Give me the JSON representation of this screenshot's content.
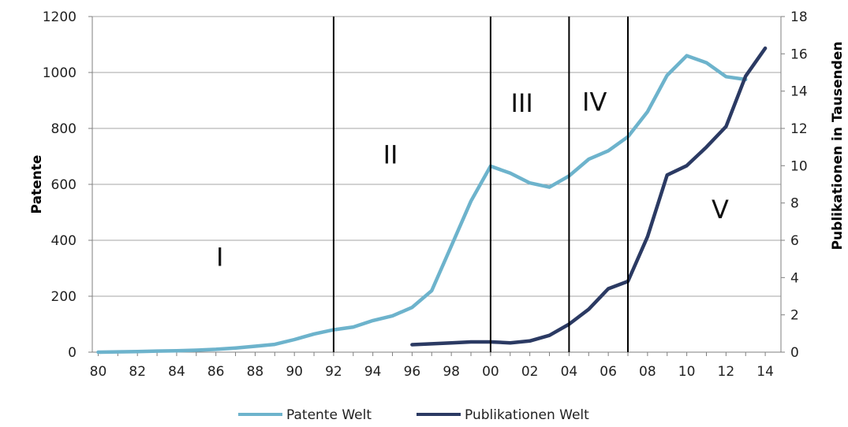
{
  "chart_data": {
    "type": "line",
    "xlabel": "",
    "ylabel": "Patente",
    "y2label": "Publikationen in Tausenden",
    "ylim": [
      0,
      1200
    ],
    "y2lim": [
      0,
      18
    ],
    "grid": true,
    "legend_position": "bottom",
    "x_tick_labels": [
      "80",
      "82",
      "84",
      "86",
      "88",
      "90",
      "92",
      "94",
      "96",
      "98",
      "00",
      "02",
      "04",
      "06",
      "08",
      "10",
      "12",
      "14"
    ],
    "y_tick_labels": [
      "0",
      "200",
      "400",
      "600",
      "800",
      "1000",
      "1200"
    ],
    "y2_tick_labels": [
      "0",
      "2",
      "4",
      "6",
      "8",
      "10",
      "12",
      "14",
      "16",
      "18"
    ],
    "series": [
      {
        "name": "Patente Welt",
        "axis": "left",
        "color": "#6db3cc",
        "x": [
          1980,
          1981,
          1982,
          1983,
          1984,
          1985,
          1986,
          1987,
          1988,
          1989,
          1990,
          1991,
          1992,
          1993,
          1994,
          1995,
          1996,
          1997,
          1998,
          1999,
          2000,
          2001,
          2002,
          2003,
          2004,
          2005,
          2006,
          2007,
          2008,
          2009,
          2010,
          2011,
          2012,
          2013
        ],
        "values": [
          0,
          1,
          2,
          4,
          5,
          7,
          10,
          15,
          21,
          28,
          45,
          65,
          80,
          90,
          113,
          130,
          160,
          220,
          380,
          540,
          665,
          640,
          605,
          590,
          630,
          690,
          720,
          770,
          860,
          990,
          1060,
          1035,
          985,
          975
        ]
      },
      {
        "name": "Publikationen Welt",
        "axis": "right",
        "color": "#2b3a63",
        "x": [
          1996,
          1997,
          1998,
          1999,
          2000,
          2001,
          2002,
          2003,
          2004,
          2005,
          2006,
          2007,
          2008,
          2009,
          2010,
          2011,
          2012,
          2013,
          2014
        ],
        "values": [
          0.4,
          0.45,
          0.5,
          0.55,
          0.55,
          0.5,
          0.6,
          0.9,
          1.5,
          2.3,
          3.4,
          3.8,
          6.2,
          9.5,
          10.0,
          11.0,
          12.1,
          14.8,
          16.3
        ]
      }
    ],
    "phase_lines": [
      1992,
      2000,
      2004,
      2007
    ],
    "phase_labels": [
      {
        "text": "I",
        "x": 1986.2,
        "y": 340
      },
      {
        "text": "II",
        "x": 1994.9,
        "y": 705
      },
      {
        "text": "III",
        "x": 2001.6,
        "y": 890
      },
      {
        "text": "IV",
        "x": 2005.3,
        "y": 895
      },
      {
        "text": "V",
        "x": 2011.7,
        "y": 510
      }
    ]
  }
}
